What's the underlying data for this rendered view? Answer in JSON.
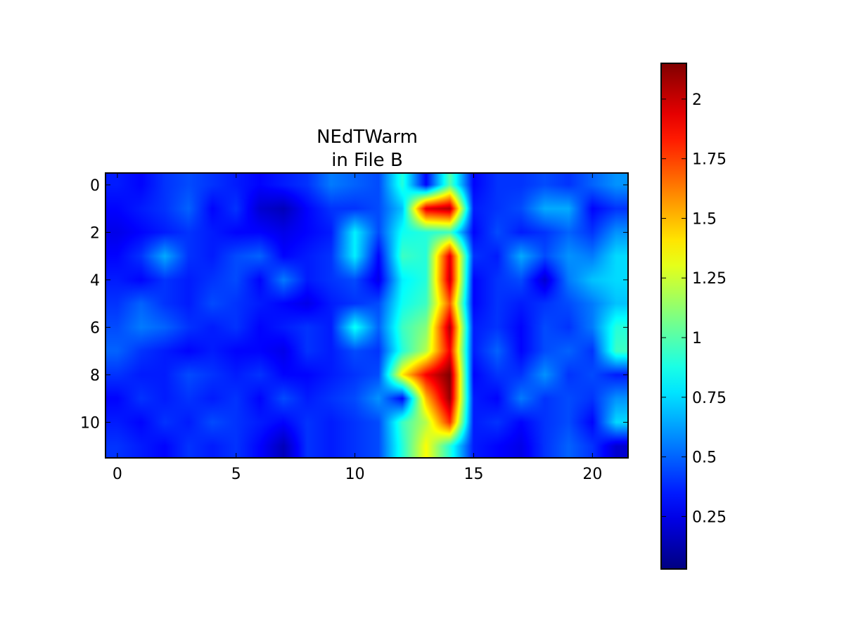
{
  "chart_data": {
    "type": "heatmap",
    "title_line1": "NEdTWarm",
    "title_line2": "in File B",
    "xlabel": "",
    "ylabel": "",
    "colormap": "jet",
    "interpolation": "bilinear",
    "grid": false,
    "n_cols": 22,
    "n_rows": 12,
    "x_ticks": [
      0,
      5,
      10,
      15,
      20
    ],
    "y_ticks": [
      0,
      2,
      4,
      6,
      8,
      10
    ],
    "vmin": 0.03,
    "vmax": 2.15,
    "colorbar": {
      "position": "right",
      "ticks": [
        0.25,
        0.5,
        0.75,
        1,
        1.25,
        1.5,
        1.75,
        2
      ],
      "tick_labels": [
        "0.25",
        "0.5",
        "0.75",
        "1",
        "1.25",
        "1.5",
        "1.75",
        "2"
      ]
    },
    "z": [
      [
        0.35,
        0.3,
        0.4,
        0.45,
        0.4,
        0.35,
        0.3,
        0.35,
        0.4,
        0.55,
        0.5,
        0.45,
        0.9,
        0.3,
        1.0,
        0.3,
        0.4,
        0.4,
        0.45,
        0.4,
        0.5,
        0.6
      ],
      [
        0.3,
        0.35,
        0.4,
        0.5,
        0.3,
        0.4,
        0.2,
        0.15,
        0.3,
        0.4,
        0.4,
        0.45,
        0.7,
        1.95,
        2.05,
        0.35,
        0.4,
        0.45,
        0.65,
        0.65,
        0.3,
        0.4
      ],
      [
        0.25,
        0.3,
        0.35,
        0.4,
        0.35,
        0.3,
        0.3,
        0.25,
        0.3,
        0.35,
        0.8,
        0.45,
        0.85,
        0.9,
        0.95,
        0.3,
        0.45,
        0.35,
        0.4,
        0.5,
        0.4,
        0.6
      ],
      [
        0.3,
        0.4,
        0.65,
        0.4,
        0.35,
        0.45,
        0.5,
        0.3,
        0.35,
        0.4,
        0.8,
        0.3,
        0.95,
        0.9,
        1.95,
        0.4,
        0.35,
        0.65,
        0.45,
        0.6,
        0.55,
        0.75
      ],
      [
        0.35,
        0.3,
        0.4,
        0.35,
        0.4,
        0.45,
        0.3,
        0.55,
        0.35,
        0.4,
        0.45,
        0.25,
        0.8,
        0.9,
        2.0,
        0.3,
        0.4,
        0.45,
        0.2,
        0.55,
        0.7,
        0.75
      ],
      [
        0.4,
        0.5,
        0.4,
        0.35,
        0.45,
        0.4,
        0.35,
        0.3,
        0.25,
        0.35,
        0.4,
        0.45,
        0.85,
        0.95,
        1.7,
        0.3,
        0.4,
        0.35,
        0.4,
        0.45,
        0.55,
        0.7
      ],
      [
        0.45,
        0.55,
        0.5,
        0.4,
        0.35,
        0.4,
        0.3,
        0.35,
        0.4,
        0.35,
        0.85,
        0.5,
        0.95,
        1.1,
        2.05,
        0.35,
        0.4,
        0.3,
        0.45,
        0.4,
        0.55,
        0.9
      ],
      [
        0.5,
        0.4,
        0.35,
        0.3,
        0.35,
        0.3,
        0.3,
        0.25,
        0.4,
        0.35,
        0.45,
        0.4,
        0.9,
        1.2,
        1.9,
        0.35,
        0.5,
        0.3,
        0.45,
        0.5,
        0.4,
        0.95
      ],
      [
        0.4,
        0.35,
        0.35,
        0.45,
        0.4,
        0.35,
        0.4,
        0.3,
        0.3,
        0.35,
        0.4,
        0.45,
        1.4,
        1.9,
        2.15,
        0.3,
        0.4,
        0.4,
        0.6,
        0.4,
        0.45,
        0.35
      ],
      [
        0.3,
        0.4,
        0.35,
        0.4,
        0.35,
        0.4,
        0.3,
        0.45,
        0.35,
        0.4,
        0.45,
        0.6,
        0.3,
        1.5,
        2.1,
        0.35,
        0.3,
        0.55,
        0.4,
        0.45,
        0.4,
        0.6
      ],
      [
        0.35,
        0.3,
        0.4,
        0.35,
        0.45,
        0.4,
        0.35,
        0.3,
        0.4,
        0.35,
        0.4,
        0.45,
        0.95,
        1.2,
        1.8,
        0.35,
        0.4,
        0.3,
        0.4,
        0.45,
        0.3,
        0.75
      ],
      [
        0.4,
        0.35,
        0.3,
        0.4,
        0.35,
        0.4,
        0.3,
        0.15,
        0.4,
        0.35,
        0.4,
        0.45,
        0.9,
        1.35,
        0.9,
        0.35,
        0.3,
        0.25,
        0.4,
        0.5,
        0.4,
        0.2
      ]
    ]
  }
}
